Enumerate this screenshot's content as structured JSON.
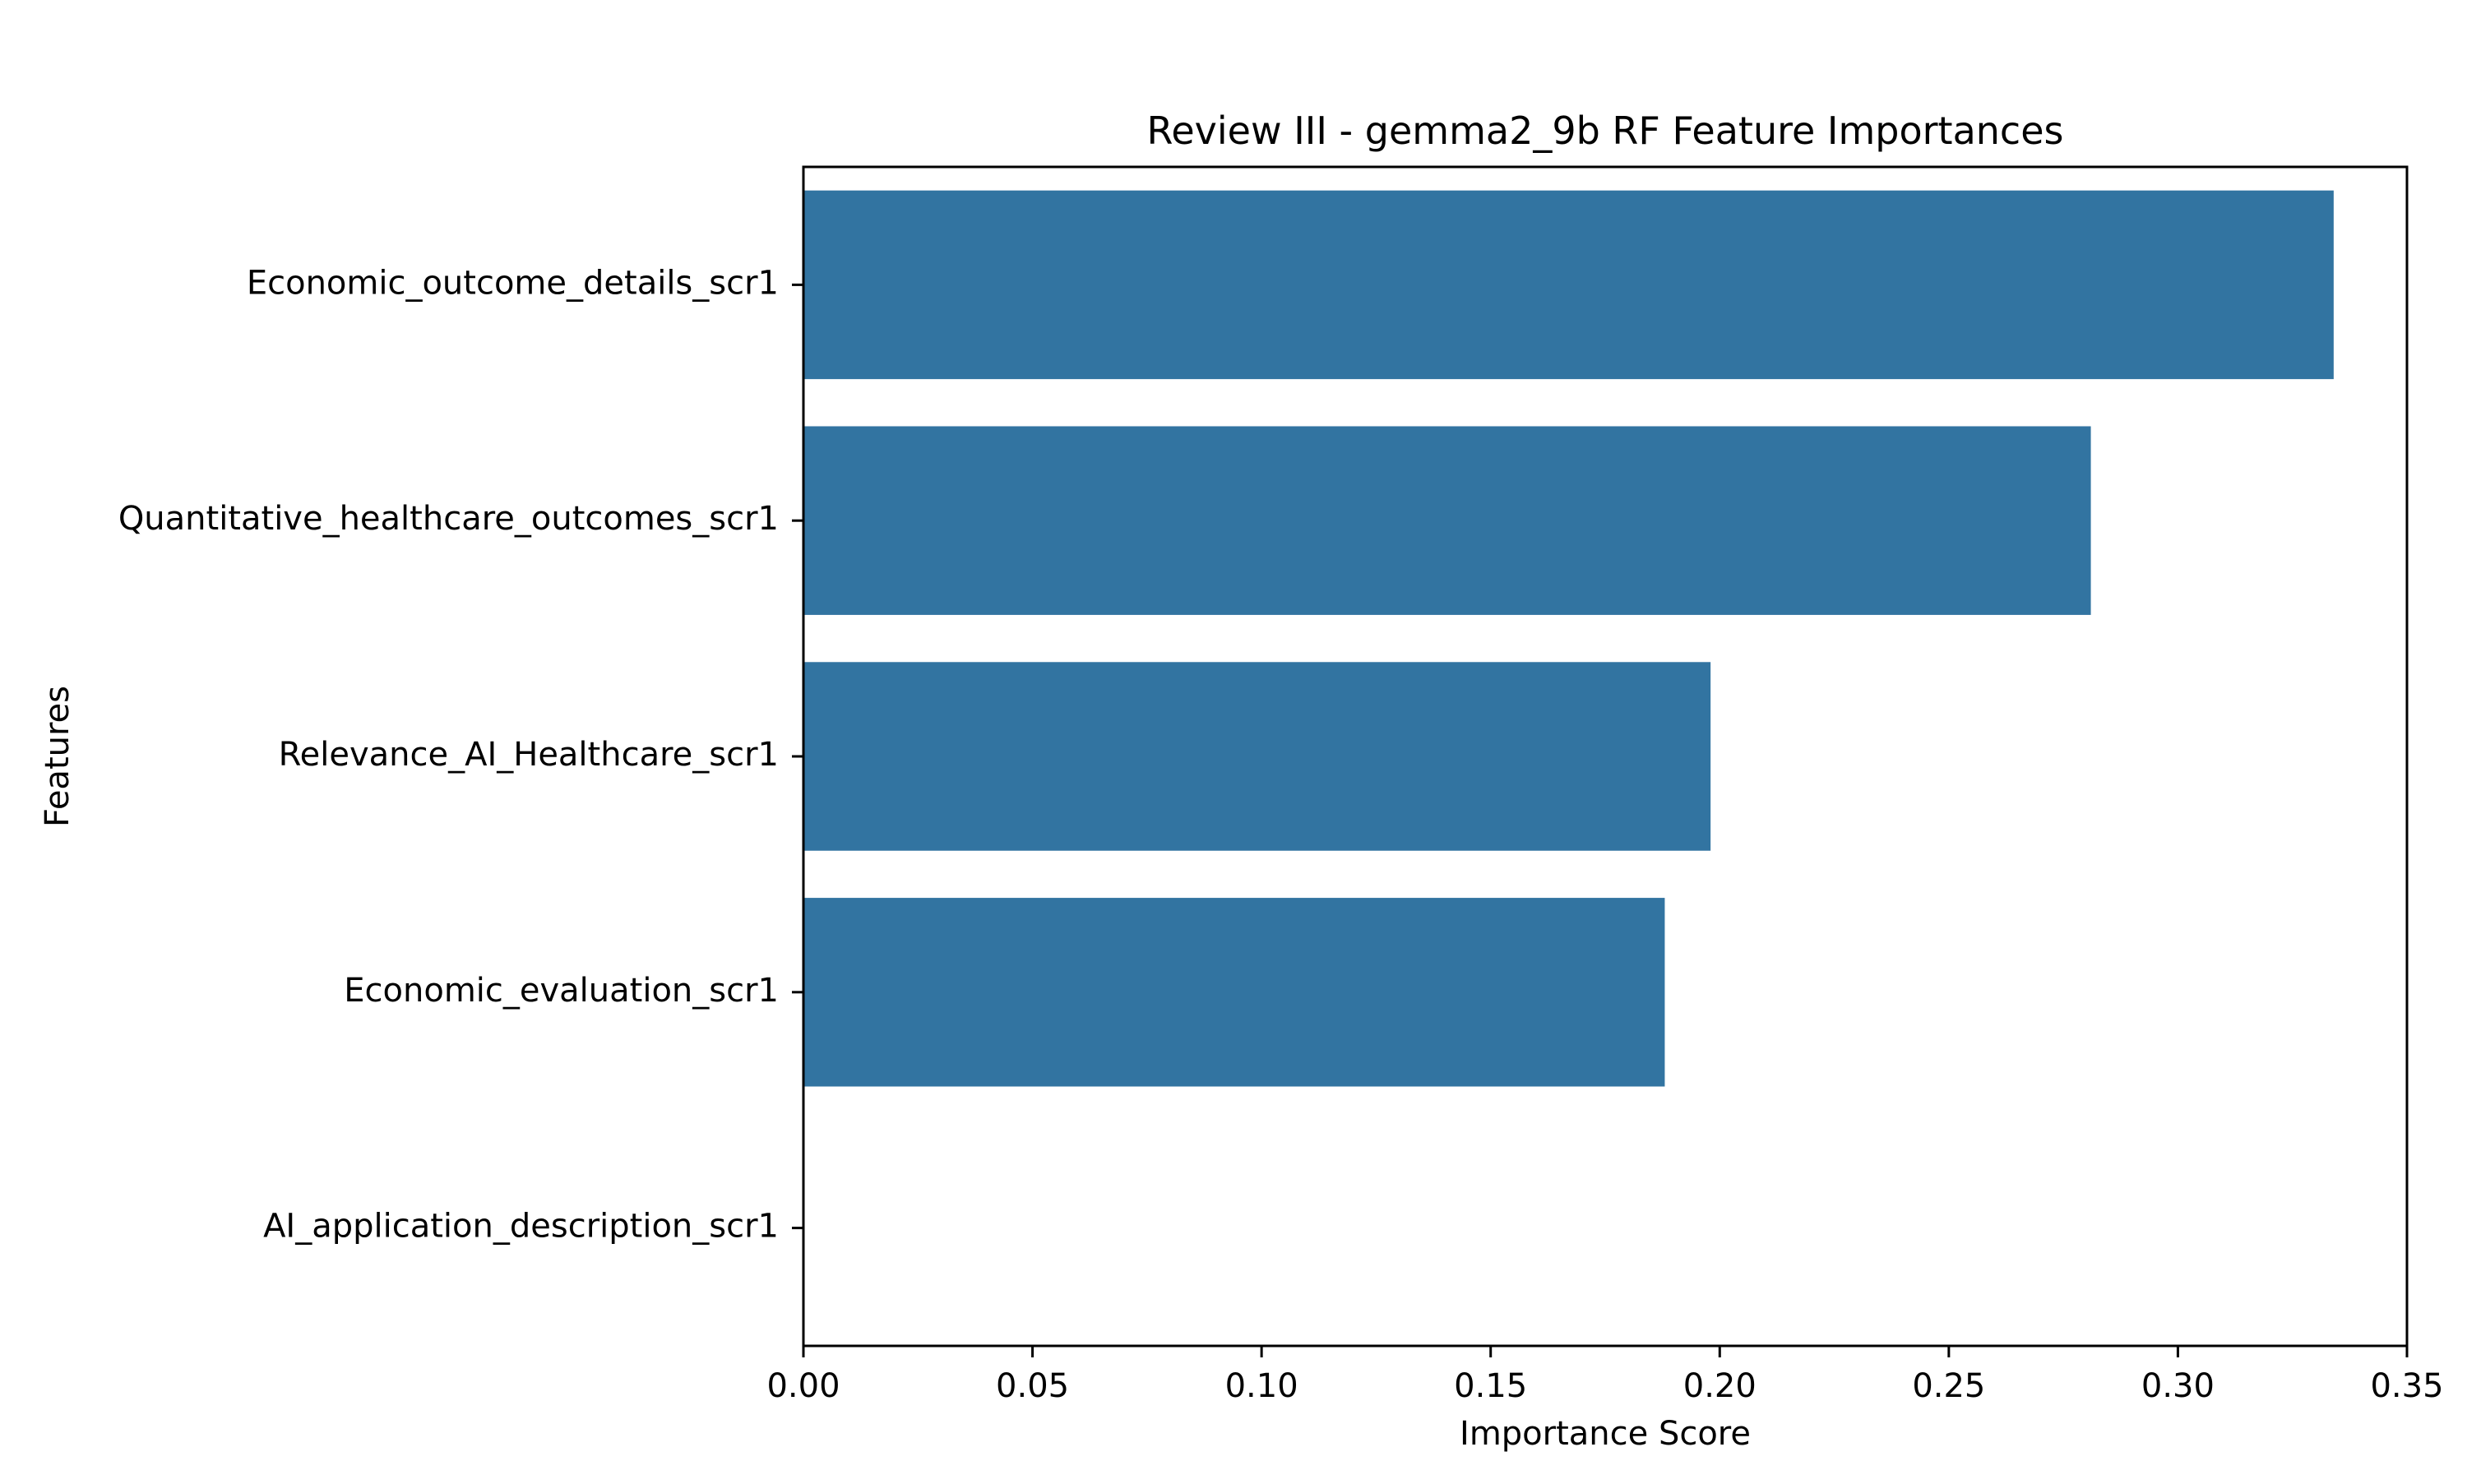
{
  "chart_data": {
    "type": "bar",
    "orientation": "horizontal",
    "title": "Review III - gemma2_9b RF Feature Importances",
    "xlabel": "Importance Score",
    "ylabel": "Features",
    "categories": [
      "Economic_outcome_details_scr1",
      "Quantitative_healthcare_outcomes_scr1",
      "Relevance_AI_Healthcare_scr1",
      "Economic_evaluation_scr1",
      "AI_application_description_scr1"
    ],
    "values": [
      0.334,
      0.281,
      0.198,
      0.188,
      0.0
    ],
    "xlim": [
      0.0,
      0.35
    ],
    "xticks": [
      "0.00",
      "0.05",
      "0.10",
      "0.15",
      "0.20",
      "0.25",
      "0.30",
      "0.35"
    ],
    "bar_color": "#3274a1",
    "grid": false,
    "legend": "none"
  }
}
